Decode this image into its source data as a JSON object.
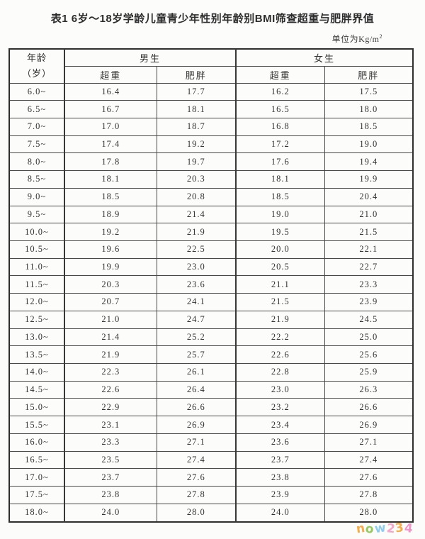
{
  "title": "表1 6岁～18岁学龄儿童青少年性别年龄别BMI筛查超重与肥胖界值",
  "unit": {
    "text": "单位为Kg/m",
    "sup": "2"
  },
  "header": {
    "age_line1": "年龄",
    "age_line2": "（岁）",
    "boys": "男生",
    "girls": "女生",
    "overweight": "超重",
    "obese": "肥胖"
  },
  "rows": [
    {
      "age": "6.0~",
      "boy_ow": "16.4",
      "boy_ob": "17.7",
      "girl_ow": "16.2",
      "girl_ob": "17.5"
    },
    {
      "age": "6.5~",
      "boy_ow": "16.7",
      "boy_ob": "18.1",
      "girl_ow": "16.5",
      "girl_ob": "18.0"
    },
    {
      "age": "7.0~",
      "boy_ow": "17.0",
      "boy_ob": "18.7",
      "girl_ow": "16.8",
      "girl_ob": "18.5"
    },
    {
      "age": "7.5~",
      "boy_ow": "17.4",
      "boy_ob": "19.2",
      "girl_ow": "17.2",
      "girl_ob": "19.0"
    },
    {
      "age": "8.0~",
      "boy_ow": "17.8",
      "boy_ob": "19.7",
      "girl_ow": "17.6",
      "girl_ob": "19.4"
    },
    {
      "age": "8.5~",
      "boy_ow": "18.1",
      "boy_ob": "20.3",
      "girl_ow": "18.1",
      "girl_ob": "19.9"
    },
    {
      "age": "9.0~",
      "boy_ow": "18.5",
      "boy_ob": "20.8",
      "girl_ow": "18.5",
      "girl_ob": "20.4"
    },
    {
      "age": "9.5~",
      "boy_ow": "18.9",
      "boy_ob": "21.4",
      "girl_ow": "19.0",
      "girl_ob": "21.0"
    },
    {
      "age": "10.0~",
      "boy_ow": "19.2",
      "boy_ob": "21.9",
      "girl_ow": "19.5",
      "girl_ob": "21.5"
    },
    {
      "age": "10.5~",
      "boy_ow": "19.6",
      "boy_ob": "22.5",
      "girl_ow": "20.0",
      "girl_ob": "22.1"
    },
    {
      "age": "11.0~",
      "boy_ow": "19.9",
      "boy_ob": "23.0",
      "girl_ow": "20.5",
      "girl_ob": "22.7"
    },
    {
      "age": "11.5~",
      "boy_ow": "20.3",
      "boy_ob": "23.6",
      "girl_ow": "21.1",
      "girl_ob": "23.3"
    },
    {
      "age": "12.0~",
      "boy_ow": "20.7",
      "boy_ob": "24.1",
      "girl_ow": "21.5",
      "girl_ob": "23.9"
    },
    {
      "age": "12.5~",
      "boy_ow": "21.0",
      "boy_ob": "24.7",
      "girl_ow": "21.9",
      "girl_ob": "24.5"
    },
    {
      "age": "13.0~",
      "boy_ow": "21.4",
      "boy_ob": "25.2",
      "girl_ow": "22.2",
      "girl_ob": "25.0"
    },
    {
      "age": "13.5~",
      "boy_ow": "21.9",
      "boy_ob": "25.7",
      "girl_ow": "22.6",
      "girl_ob": "25.6"
    },
    {
      "age": "14.0~",
      "boy_ow": "22.3",
      "boy_ob": "26.1",
      "girl_ow": "22.8",
      "girl_ob": "25.9"
    },
    {
      "age": "14.5~",
      "boy_ow": "22.6",
      "boy_ob": "26.4",
      "girl_ow": "23.0",
      "girl_ob": "26.3"
    },
    {
      "age": "15.0~",
      "boy_ow": "22.9",
      "boy_ob": "26.6",
      "girl_ow": "23.2",
      "girl_ob": "26.6"
    },
    {
      "age": "15.5~",
      "boy_ow": "23.1",
      "boy_ob": "26.9",
      "girl_ow": "23.4",
      "girl_ob": "26.9"
    },
    {
      "age": "16.0~",
      "boy_ow": "23.3",
      "boy_ob": "27.1",
      "girl_ow": "23.6",
      "girl_ob": "27.1"
    },
    {
      "age": "16.5~",
      "boy_ow": "23.5",
      "boy_ob": "27.4",
      "girl_ow": "23.7",
      "girl_ob": "27.4"
    },
    {
      "age": "17.0~",
      "boy_ow": "23.7",
      "boy_ob": "27.6",
      "girl_ow": "23.8",
      "girl_ob": "27.6"
    },
    {
      "age": "17.5~",
      "boy_ow": "23.8",
      "boy_ob": "27.8",
      "girl_ow": "23.9",
      "girl_ob": "27.8"
    },
    {
      "age": "18.0~",
      "boy_ow": "24.0",
      "boy_ob": "28.0",
      "girl_ow": "24.0",
      "girl_ob": "28.0"
    }
  ],
  "watermark": {
    "letters": [
      {
        "char": "n",
        "color": "#f5a43b"
      },
      {
        "char": "o",
        "color": "#8cc550"
      },
      {
        "char": "w",
        "color": "#85c7ea"
      },
      {
        "char": "2",
        "color": "#f59ec2"
      },
      {
        "char": "3",
        "color": "#f5a43b"
      },
      {
        "char": "4",
        "color": "#ee8cc5"
      }
    ]
  }
}
